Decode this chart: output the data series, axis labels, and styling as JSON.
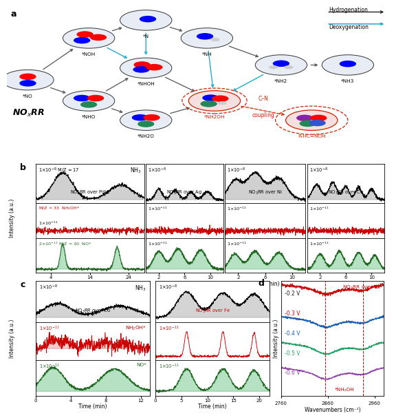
{
  "fig_width": 5.54,
  "fig_height": 5.86,
  "panel_b": {
    "col_labels": [
      "NO₃RR over Pd/C",
      "NO₃RR over Ag",
      "NO₃RR over Ni",
      "NO₃RR over Cu"
    ],
    "pdC_xticks": [
      4,
      14,
      24
    ],
    "other_xticks": [
      2,
      6,
      10
    ],
    "scale_b_black": "1×10⁻⁸",
    "scale_b_red_pdC": "M/Z = 33  NH₂OH*",
    "scale_b_red_scale": "1×10⁻¹¹",
    "scale_b_green_pdC": "M/Z = 30  NO*",
    "scale_b_green_scale": "2×10⁻¹¹",
    "nh3_label": "NH₃",
    "mz17_label": "M/Z = 17"
  },
  "panel_c": {
    "col_labels": [
      "NO₃RR over Co",
      "NO₃RR over Fe"
    ],
    "co_xticks": [
      0,
      4,
      8,
      12
    ],
    "fe_xticks": [
      0,
      5,
      10,
      15,
      20
    ]
  },
  "panel_d": {
    "voltages": [
      "-0.2 V",
      "-0.3 V",
      "-0.4 V",
      "-0.5 V",
      "-0.6 V"
    ],
    "volt_colors": [
      "#1a1a1a",
      "#cc0000",
      "#1a5fb4",
      "#26a269",
      "#9141ac"
    ],
    "xmin": 2760,
    "xmax": 2980,
    "xlabel": "Wavenumbers (cm⁻¹)",
    "ylabel": "Intensity (a.u.)",
    "dashed_lines": [
      2855,
      2935
    ],
    "nh2oh_label": "*NH₂OH",
    "title": "NO₃RR over Fe"
  }
}
